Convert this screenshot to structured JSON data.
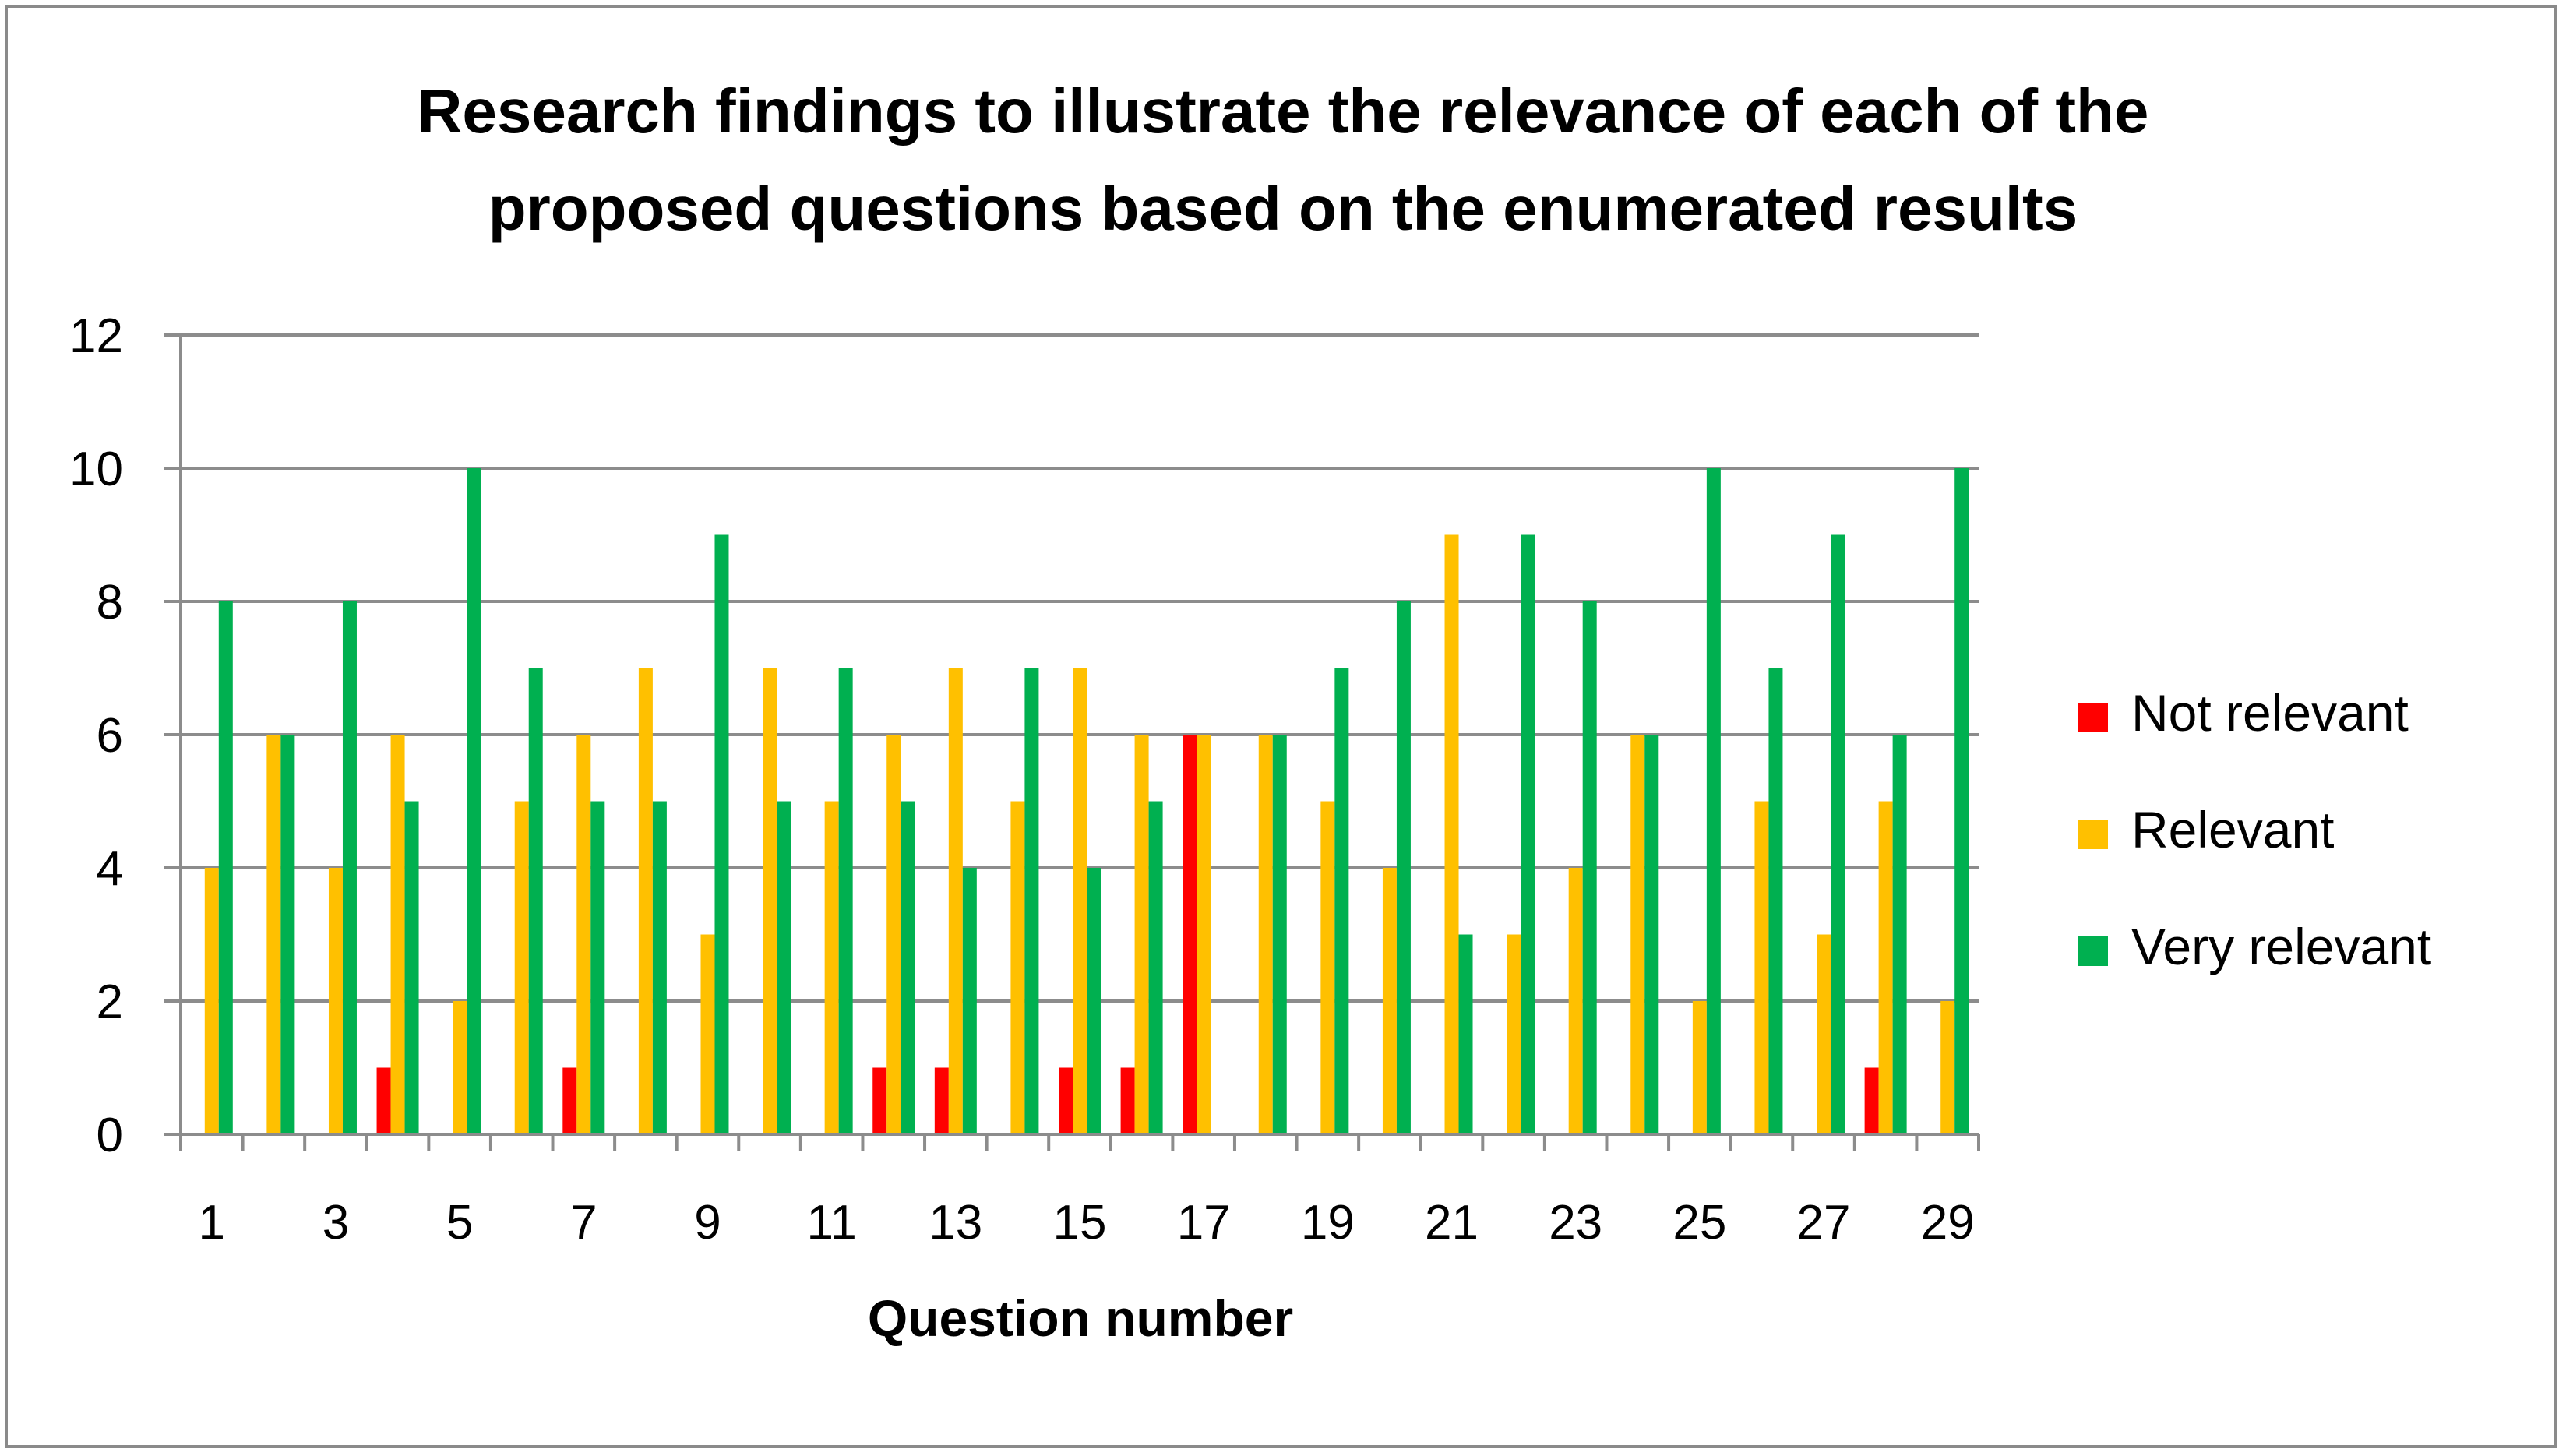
{
  "chart_data": {
    "type": "bar",
    "title": "Research findings to illustrate the relevance of each of the proposed questions based on the enumerated results",
    "title_lines": [
      "Research findings to illustrate the relevance of each of the",
      "proposed questions based on the enumerated results"
    ],
    "xlabel": "Question number",
    "ylabel": "",
    "ylim": [
      0,
      12
    ],
    "yticks": [
      "0",
      "2",
      "4",
      "6",
      "8",
      "10",
      "12"
    ],
    "grid": true,
    "legend_position": "right",
    "categories": [
      "1",
      "2",
      "3",
      "4",
      "5",
      "6",
      "7",
      "8",
      "9",
      "10",
      "11",
      "12",
      "13",
      "14",
      "15",
      "16",
      "17",
      "18",
      "19",
      "20",
      "21",
      "22",
      "23",
      "24",
      "25",
      "26",
      "27",
      "28",
      "29"
    ],
    "xtick_labels": [
      "1",
      "3",
      "5",
      "7",
      "9",
      "11",
      "13",
      "15",
      "17",
      "19",
      "21",
      "23",
      "25",
      "27",
      "29"
    ],
    "series": [
      {
        "name": "Not relevant",
        "color": "#ff0000",
        "values": [
          0,
          0,
          0,
          1,
          0,
          0,
          1,
          0,
          0,
          0,
          0,
          1,
          1,
          0,
          1,
          1,
          6,
          0,
          0,
          0,
          0,
          0,
          0,
          0,
          0,
          0,
          0,
          1,
          0
        ]
      },
      {
        "name": "Relevant",
        "color": "#ffc000",
        "values": [
          4,
          6,
          4,
          6,
          2,
          5,
          6,
          7,
          3,
          7,
          5,
          6,
          7,
          5,
          7,
          6,
          6,
          6,
          5,
          4,
          9,
          3,
          4,
          6,
          2,
          5,
          3,
          5,
          2
        ]
      },
      {
        "name": "Very relevant",
        "color": "#00b050",
        "values": [
          8,
          6,
          8,
          5,
          10,
          7,
          5,
          5,
          9,
          5,
          7,
          5,
          4,
          7,
          4,
          5,
          0,
          6,
          7,
          8,
          3,
          9,
          8,
          6,
          10,
          7,
          9,
          6,
          10
        ]
      }
    ]
  }
}
